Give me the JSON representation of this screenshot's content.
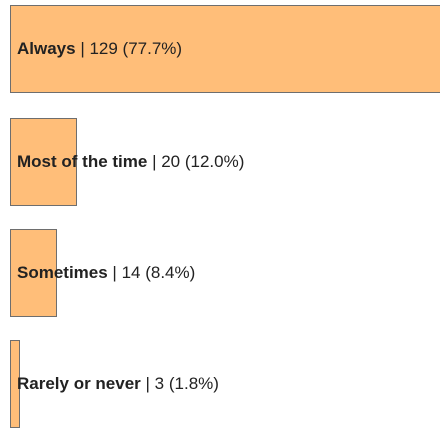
{
  "chart_data": {
    "type": "bar",
    "orientation": "horizontal",
    "categories": [
      "Always",
      "Most of the time",
      "Sometimes",
      "Rarely or never"
    ],
    "values": [
      129,
      20,
      14,
      3
    ],
    "percent_labels": [
      "77.7%",
      "12.0%",
      "8.4%",
      "1.8%"
    ],
    "value_labels": [
      "129 (77.7%)",
      "20 (12.0%)",
      "14 (8.4%)",
      "3 (1.8%)"
    ],
    "xlim": [
      0,
      129
    ],
    "bar_color": "#ffbe79",
    "bar_border_color": "#6e6e6e",
    "grid": false,
    "legend": "none",
    "title": "",
    "xlabel": "",
    "ylabel": ""
  }
}
